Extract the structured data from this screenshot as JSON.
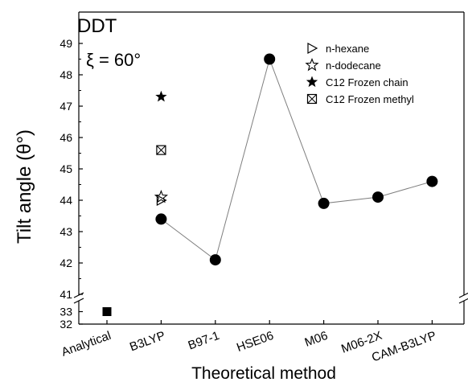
{
  "chart_data": {
    "type": "scatter",
    "title": "DDT",
    "annotation": "ξ = 60°",
    "xlabel": "Theoretical method",
    "ylabel": "Tilt angle (θ°)",
    "categories": [
      "Analytical",
      "B3LYP",
      "B97-1",
      "HSE06",
      "M06",
      "M06-2X",
      "CAM-B3LYP"
    ],
    "y_upper_ticks": [
      41,
      42,
      43,
      44,
      45,
      46,
      47,
      48,
      49
    ],
    "y_lower_ticks": [
      32,
      33
    ],
    "ylim_upper": [
      41,
      49.5
    ],
    "ylim_lower": [
      32,
      33.5
    ],
    "axis_break": true,
    "grid": false,
    "legend_position": "top-right",
    "series": [
      {
        "name": "",
        "marker": "filled-circle",
        "line": true,
        "points": [
          {
            "x": "B3LYP",
            "y": 43.4
          },
          {
            "x": "B97-1",
            "y": 42.1
          },
          {
            "x": "HSE06",
            "y": 48.5
          },
          {
            "x": "M06",
            "y": 43.9
          },
          {
            "x": "M06-2X",
            "y": 44.1
          },
          {
            "x": "CAM-B3LYP",
            "y": 44.6
          }
        ]
      },
      {
        "name": "",
        "marker": "filled-square",
        "line": false,
        "points": [
          {
            "x": "Analytical",
            "y": 33.0
          }
        ]
      },
      {
        "name": "n-hexane",
        "marker": "open-triangle-right",
        "line": false,
        "points": [
          {
            "x": "B3LYP",
            "y": 44.0
          }
        ]
      },
      {
        "name": "n-dodecane",
        "marker": "open-star",
        "line": false,
        "points": [
          {
            "x": "B3LYP",
            "y": 44.1
          }
        ]
      },
      {
        "name": "C12 Frozen chain",
        "marker": "filled-star",
        "line": false,
        "points": [
          {
            "x": "B3LYP",
            "y": 47.3
          }
        ]
      },
      {
        "name": "C12 Frozen methyl",
        "marker": "crossed-square",
        "line": false,
        "points": [
          {
            "x": "B3LYP",
            "y": 45.6
          }
        ]
      }
    ],
    "colors": {
      "marker": "#000000",
      "line": "#7f7f7f",
      "axis": "#000000"
    }
  }
}
